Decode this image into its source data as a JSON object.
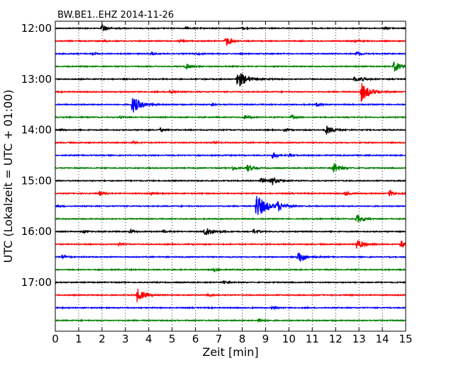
{
  "chart_data": {
    "type": "line",
    "title": "BW.BE1..EHZ 2014-11-26",
    "xlabel": "Zeit  [min]",
    "ylabel": "UTC (Lokalzeit = UTC + 01:00)",
    "xlim": [
      0,
      15
    ],
    "x_ticks": [
      "0",
      "1",
      "2",
      "3",
      "4",
      "5",
      "6",
      "7",
      "8",
      "9",
      "10",
      "11",
      "12",
      "13",
      "14",
      "15"
    ],
    "y_ticks": [
      {
        "label": "12:00",
        "row": 0
      },
      {
        "label": "13:00",
        "row": 4
      },
      {
        "label": "14:00",
        "row": 8
      },
      {
        "label": "15:00",
        "row": 12
      },
      {
        "label": "16:00",
        "row": 16
      },
      {
        "label": "17:00",
        "row": 20
      }
    ],
    "grid": "vertical dotted at each minute",
    "row_minutes": 15,
    "row_colors": [
      "#000000",
      "#ff0000",
      "#0000ff",
      "#008000"
    ],
    "traces": [
      {
        "start": "12:00",
        "events": [
          {
            "t": 2.0,
            "amp": 0.7
          },
          {
            "t": 5.6,
            "amp": 0.2
          },
          {
            "t": 8.0,
            "amp": 0.2
          },
          {
            "t": 14.1,
            "amp": 0.2
          }
        ]
      },
      {
        "start": "12:15",
        "events": [
          {
            "t": 2.1,
            "amp": 0.2
          },
          {
            "t": 5.3,
            "amp": 0.2
          },
          {
            "t": 7.3,
            "amp": 0.9
          },
          {
            "t": 12.8,
            "amp": 0.2
          }
        ]
      },
      {
        "start": "12:30",
        "events": [
          {
            "t": 1.6,
            "amp": 0.2
          },
          {
            "t": 4.1,
            "amp": 0.2
          },
          {
            "t": 6.1,
            "amp": 0.2
          },
          {
            "t": 12.9,
            "amp": 0.3
          }
        ]
      },
      {
        "start": "12:45",
        "events": [
          {
            "t": 5.6,
            "amp": 0.5
          },
          {
            "t": 14.5,
            "amp": 1.0
          }
        ]
      },
      {
        "start": "13:00",
        "events": [
          {
            "t": 7.8,
            "amp": 1.7
          },
          {
            "t": 12.8,
            "amp": 0.4
          },
          {
            "t": 13.1,
            "amp": 0.4
          }
        ]
      },
      {
        "start": "13:15",
        "events": [
          {
            "t": 4.9,
            "amp": 0.4
          },
          {
            "t": 13.1,
            "amp": 1.7
          }
        ]
      },
      {
        "start": "13:30",
        "events": [
          {
            "t": 3.3,
            "amp": 1.6
          },
          {
            "t": 6.7,
            "amp": 0.2
          },
          {
            "t": 11.2,
            "amp": 0.3
          }
        ]
      },
      {
        "start": "13:45",
        "events": [
          {
            "t": 2.8,
            "amp": 0.2
          },
          {
            "t": 8.1,
            "amp": 0.4
          },
          {
            "t": 10.1,
            "amp": 0.3
          }
        ]
      },
      {
        "start": "14:00",
        "events": [
          {
            "t": 0.2,
            "amp": 0.2
          },
          {
            "t": 4.5,
            "amp": 0.3
          },
          {
            "t": 9.8,
            "amp": 0.2
          },
          {
            "t": 11.6,
            "amp": 0.9
          }
        ]
      },
      {
        "start": "14:15",
        "events": [
          {
            "t": 3.3,
            "amp": 0.2
          },
          {
            "t": 6.8,
            "amp": 0.2
          }
        ]
      },
      {
        "start": "14:30",
        "events": [
          {
            "t": 9.3,
            "amp": 0.6
          },
          {
            "t": 10.0,
            "amp": 0.2
          }
        ]
      },
      {
        "start": "14:45",
        "events": [
          {
            "t": 7.6,
            "amp": 0.4
          },
          {
            "t": 8.2,
            "amp": 0.7
          },
          {
            "t": 11.9,
            "amp": 1.0
          }
        ]
      },
      {
        "start": "15:00",
        "events": [
          {
            "t": 8.8,
            "amp": 0.5
          },
          {
            "t": 9.2,
            "amp": 0.9
          }
        ]
      },
      {
        "start": "15:15",
        "events": [
          {
            "t": 1.9,
            "amp": 0.4
          },
          {
            "t": 4.1,
            "amp": 0.2
          },
          {
            "t": 12.4,
            "amp": 0.4
          },
          {
            "t": 14.3,
            "amp": 0.6
          }
        ]
      },
      {
        "start": "15:30",
        "events": [
          {
            "t": 0.1,
            "amp": 0.2
          },
          {
            "t": 8.6,
            "amp": 2.2
          },
          {
            "t": 9.5,
            "amp": 0.8
          }
        ]
      },
      {
        "start": "15:45",
        "events": [
          {
            "t": 12.9,
            "amp": 0.8
          }
        ]
      },
      {
        "start": "16:00",
        "events": [
          {
            "t": 1.2,
            "amp": 0.3
          },
          {
            "t": 3.2,
            "amp": 0.4
          },
          {
            "t": 4.6,
            "amp": 0.3
          },
          {
            "t": 6.4,
            "amp": 1.1
          },
          {
            "t": 8.5,
            "amp": 0.4
          }
        ]
      },
      {
        "start": "16:15",
        "events": [
          {
            "t": 2.7,
            "amp": 0.2
          },
          {
            "t": 12.9,
            "amp": 1.0
          },
          {
            "t": 14.8,
            "amp": 0.7
          }
        ]
      },
      {
        "start": "16:30",
        "events": [
          {
            "t": 0.3,
            "amp": 0.4
          },
          {
            "t": 10.4,
            "amp": 1.2
          }
        ]
      },
      {
        "start": "16:45",
        "events": [
          {
            "t": 6.8,
            "amp": 0.3
          }
        ]
      },
      {
        "start": "17:00",
        "events": [
          {
            "t": 7.2,
            "amp": 0.2
          }
        ]
      },
      {
        "start": "17:15",
        "events": [
          {
            "t": 3.5,
            "amp": 1.2
          },
          {
            "t": 6.5,
            "amp": 0.3
          }
        ]
      },
      {
        "start": "17:30",
        "events": [
          {
            "t": 9.3,
            "amp": 0.2
          }
        ]
      },
      {
        "start": "17:45",
        "events": [
          {
            "t": 8.7,
            "amp": 0.4
          }
        ]
      }
    ]
  }
}
